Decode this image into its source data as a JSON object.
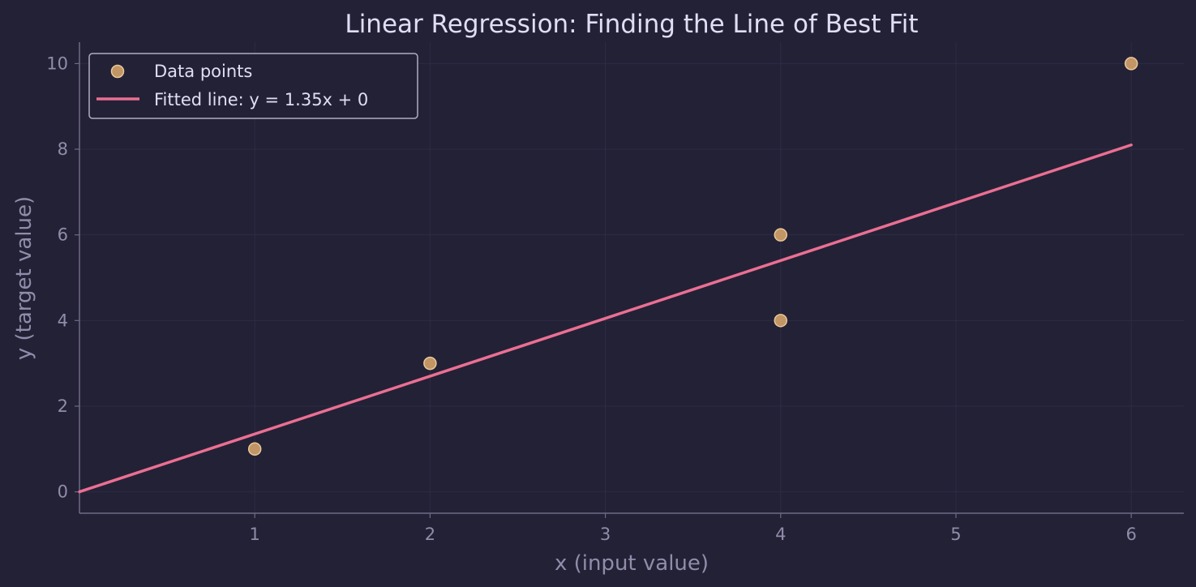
{
  "chart_data": {
    "type": "scatter",
    "title": "Linear Regression: Finding the Line of Best Fit",
    "xlabel": "x (input value)",
    "ylabel": "y (target value)",
    "xlim": [
      0,
      6.3
    ],
    "ylim": [
      -0.5,
      10.5
    ],
    "xticks": [
      1,
      2,
      3,
      4,
      5,
      6
    ],
    "yticks": [
      0,
      2,
      4,
      6,
      8,
      10
    ],
    "grid": true,
    "legend_position": "top-left",
    "series": [
      {
        "name": "Data points",
        "kind": "scatter",
        "color": "#d4a26a",
        "points": [
          {
            "x": 1,
            "y": 1
          },
          {
            "x": 2,
            "y": 3
          },
          {
            "x": 4,
            "y": 4
          },
          {
            "x": 4,
            "y": 6
          },
          {
            "x": 6,
            "y": 10
          }
        ]
      },
      {
        "name": "Fitted line: y = 1.35x + 0",
        "kind": "line",
        "color": "#eb6f92",
        "slope": 1.35,
        "intercept": 0,
        "x_range": [
          0,
          6
        ]
      }
    ]
  },
  "colors": {
    "background": "#232136",
    "text": "#e0def4",
    "muted": "#908caa",
    "grid": "#2e2b45",
    "axis": "#6e6a86"
  }
}
